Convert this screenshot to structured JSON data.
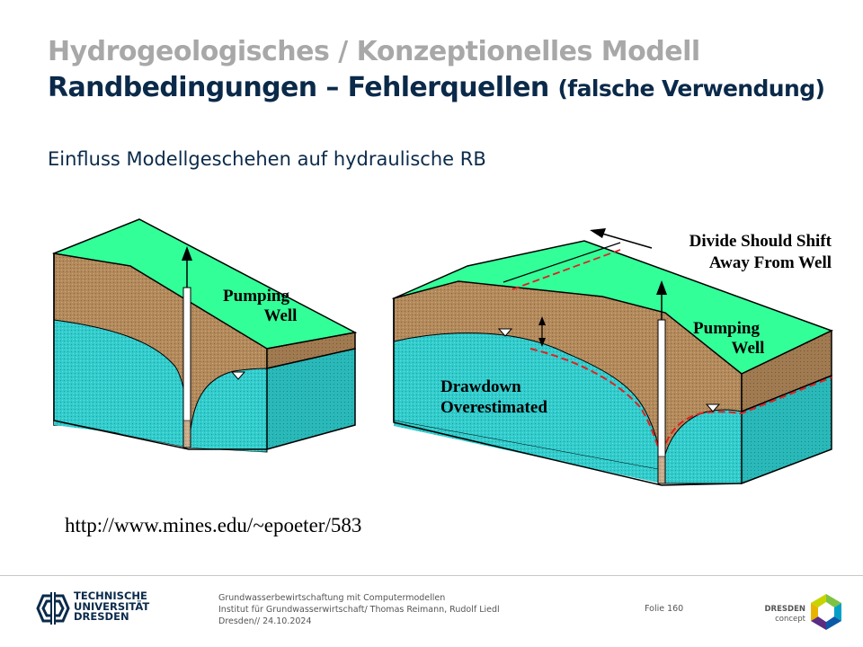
{
  "slide": {
    "title_line1": "Hydrogeologisches / Konzeptionelles Modell",
    "title_line2_main": "Randbedingungen – Fehlerquellen ",
    "title_line2_paren": "(falsche Verwendung)",
    "subtitle": "Einfluss Modellgeschehen auf hydraulische RB",
    "source_url": "http://www.mines.edu/~epoeter/583"
  },
  "figure": {
    "left_block": {
      "label_line1": "Pumping",
      "label_line2": "Well"
    },
    "right_block": {
      "pumping_line1": "Pumping",
      "pumping_line2": "Well",
      "divide_line1": "Divide Should Shift",
      "divide_line2": "Away From Well",
      "drawdown_line1": "Drawdown",
      "drawdown_line2": "Overestimated"
    },
    "colors": {
      "surface": "#33ff99",
      "soil": "#b38a5c",
      "water": "#33cccc",
      "boundary_red": "#e02020"
    }
  },
  "footer": {
    "university_line1": "TECHNISCHE",
    "university_line2": "UNIVERSITÄT",
    "university_line3": "DRESDEN",
    "info_line1": "Grundwasserbewirtschaftung mit Computermodellen",
    "info_line2": "Institut für Grundwasserwirtschaft/ Thomas Reimann, Rudolf Liedl",
    "info_line3": "Dresden// 24.10.2024",
    "slide_number": "Folie 160",
    "concept_line1": "DRESDEN",
    "concept_line2": "concept"
  }
}
